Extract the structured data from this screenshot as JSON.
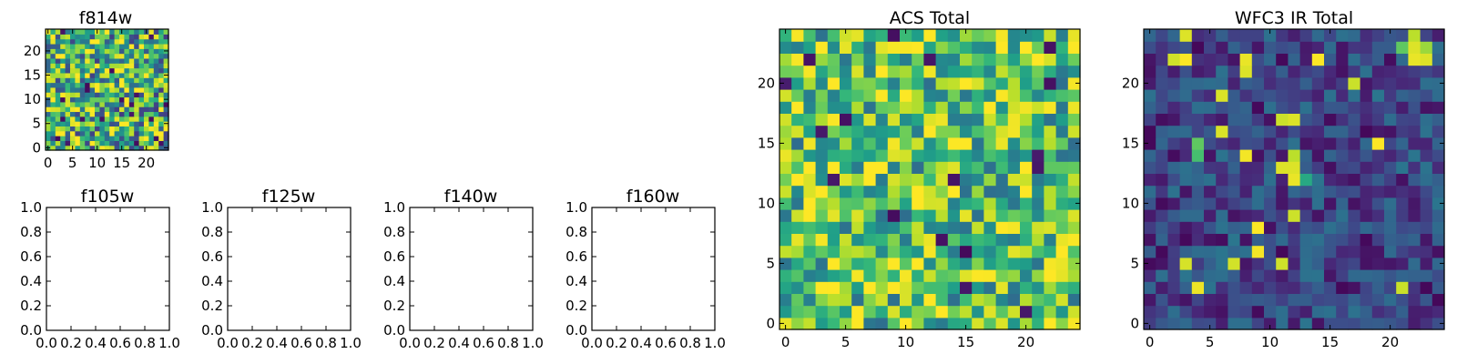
{
  "chart_data": [
    {
      "id": "f814w",
      "type": "heatmap",
      "title": "f814w",
      "cmap": "viridis",
      "grid_size": 25,
      "seed": 814,
      "bias": 0.62,
      "spread": 0.9,
      "xlim": [
        -0.5,
        24.5
      ],
      "ylim": [
        -0.5,
        24.5
      ],
      "xticks": [
        "0",
        "5",
        "10",
        "15",
        "20"
      ],
      "yticks": [
        "0",
        "5",
        "10",
        "15",
        "20"
      ]
    },
    {
      "id": "f105w",
      "type": "heatmap",
      "title": "f105w",
      "empty": true,
      "xlim": [
        0,
        1
      ],
      "ylim": [
        0,
        1
      ],
      "xticks": [
        "0.0",
        "0.2",
        "0.4",
        "0.6",
        "0.8",
        "1.0"
      ],
      "yticks": [
        "0.0",
        "0.2",
        "0.4",
        "0.6",
        "0.8",
        "1.0"
      ]
    },
    {
      "id": "f125w",
      "type": "heatmap",
      "title": "f125w",
      "empty": true,
      "xlim": [
        0,
        1
      ],
      "ylim": [
        0,
        1
      ],
      "xticks": [
        "0.0",
        "0.2",
        "0.4",
        "0.6",
        "0.8",
        "1.0"
      ],
      "yticks": [
        "0.0",
        "0.2",
        "0.4",
        "0.6",
        "0.8",
        "1.0"
      ]
    },
    {
      "id": "f140w",
      "type": "heatmap",
      "title": "f140w",
      "empty": true,
      "xlim": [
        0,
        1
      ],
      "ylim": [
        0,
        1
      ],
      "xticks": [
        "0.0",
        "0.2",
        "0.4",
        "0.6",
        "0.8",
        "1.0"
      ],
      "yticks": [
        "0.0",
        "0.2",
        "0.4",
        "0.6",
        "0.8",
        "1.0"
      ]
    },
    {
      "id": "f160w",
      "type": "heatmap",
      "title": "f160w",
      "empty": true,
      "xlim": [
        0,
        1
      ],
      "ylim": [
        0,
        1
      ],
      "xticks": [
        "0.0",
        "0.2",
        "0.4",
        "0.6",
        "0.8",
        "1.0"
      ],
      "yticks": [
        "0.0",
        "0.2",
        "0.4",
        "0.6",
        "0.8",
        "1.0"
      ]
    },
    {
      "id": "acs-total",
      "type": "heatmap",
      "title": "ACS Total",
      "cmap": "viridis",
      "grid_size": 25,
      "seed": 4242,
      "bias": 0.7,
      "spread": 0.7,
      "xlim": [
        -0.5,
        24.5
      ],
      "ylim": [
        -0.5,
        24.5
      ],
      "xticks": [
        "0",
        "5",
        "10",
        "15",
        "20"
      ],
      "yticks": [
        "0",
        "5",
        "10",
        "15",
        "20"
      ]
    },
    {
      "id": "wfc3-ir-total",
      "type": "heatmap",
      "title": "WFC3 IR Total",
      "cmap": "viridis",
      "grid_size": 25,
      "seed": 31337,
      "bias": 0.22,
      "spread": 0.35,
      "xlim": [
        -0.5,
        24.5
      ],
      "ylim": [
        -0.5,
        24.5
      ],
      "xticks": [
        "0",
        "5",
        "10",
        "15",
        "20"
      ],
      "yticks": [
        "0",
        "5",
        "10",
        "15",
        "20"
      ],
      "hot_pixels": [
        {
          "x": 8,
          "y": 22,
          "v": 0.97
        },
        {
          "x": 8,
          "y": 21,
          "v": 0.95
        },
        {
          "x": 22,
          "y": 24,
          "v": 0.9
        },
        {
          "x": 22,
          "y": 23,
          "v": 0.95
        },
        {
          "x": 22,
          "y": 22,
          "v": 0.97
        },
        {
          "x": 23,
          "y": 23,
          "v": 0.85
        },
        {
          "x": 23,
          "y": 22,
          "v": 0.95
        },
        {
          "x": 21,
          "y": 23,
          "v": 0.75
        },
        {
          "x": 12,
          "y": 14,
          "v": 0.9
        },
        {
          "x": 11,
          "y": 13,
          "v": 0.95
        },
        {
          "x": 12,
          "y": 13,
          "v": 0.95
        },
        {
          "x": 12,
          "y": 12,
          "v": 0.97
        },
        {
          "x": 13,
          "y": 12,
          "v": 0.6
        },
        {
          "x": 4,
          "y": 15,
          "v": 0.75
        },
        {
          "x": 4,
          "y": 14,
          "v": 0.7
        }
      ],
      "cold_pixels": [
        {
          "x": 0,
          "y": 16
        },
        {
          "x": 0,
          "y": 15
        },
        {
          "x": 11,
          "y": 6
        },
        {
          "x": 18,
          "y": 16
        },
        {
          "x": 16,
          "y": 3
        },
        {
          "x": 23,
          "y": 3
        },
        {
          "x": 24,
          "y": 2
        },
        {
          "x": 4,
          "y": 23
        }
      ]
    }
  ]
}
